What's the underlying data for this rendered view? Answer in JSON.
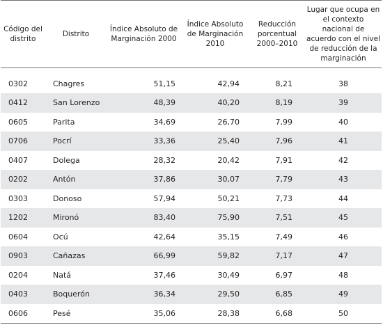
{
  "table": {
    "headers": [
      "Código del distrito",
      "Distrito",
      "Índice Absoluto de Marginación 2000",
      "Índice Absoluto de Marginación 2010",
      "Reducción porcentual 2000–2010",
      "Lugar que ocupa en el contexto nacional de acuerdo con el nivel de reducción de la marginación"
    ],
    "rows": [
      [
        "0302",
        "Chagres",
        "51,15",
        "42,94",
        "8,21",
        "38"
      ],
      [
        "0412",
        "San Lorenzo",
        "48,39",
        "40,20",
        "8,19",
        "39"
      ],
      [
        "0605",
        "Parita",
        "34,69",
        "26,70",
        "7,99",
        "40"
      ],
      [
        "0706",
        "Pocrí",
        "33,36",
        "25,40",
        "7,96",
        "41"
      ],
      [
        "0407",
        "Dolega",
        "28,32",
        "20,42",
        "7,91",
        "42"
      ],
      [
        "0202",
        "Antón",
        "37,86",
        "30,07",
        "7,79",
        "43"
      ],
      [
        "0303",
        "Donoso",
        "57,94",
        "50,21",
        "7,73",
        "44"
      ],
      [
        "1202",
        "Mironó",
        "83,40",
        "75,90",
        "7,51",
        "45"
      ],
      [
        "0604",
        "Ocú",
        "42,64",
        "35,15",
        "7,49",
        "46"
      ],
      [
        "0903",
        "Cañazas",
        "66,99",
        "59,82",
        "7,17",
        "47"
      ],
      [
        "0204",
        "Natá",
        "37,46",
        "30,49",
        "6,97",
        "48"
      ],
      [
        "0403",
        "Boquerón",
        "36,34",
        "29,50",
        "6,85",
        "49"
      ],
      [
        "0606",
        "Pesé",
        "35,06",
        "28,38",
        "6,68",
        "50"
      ]
    ]
  }
}
